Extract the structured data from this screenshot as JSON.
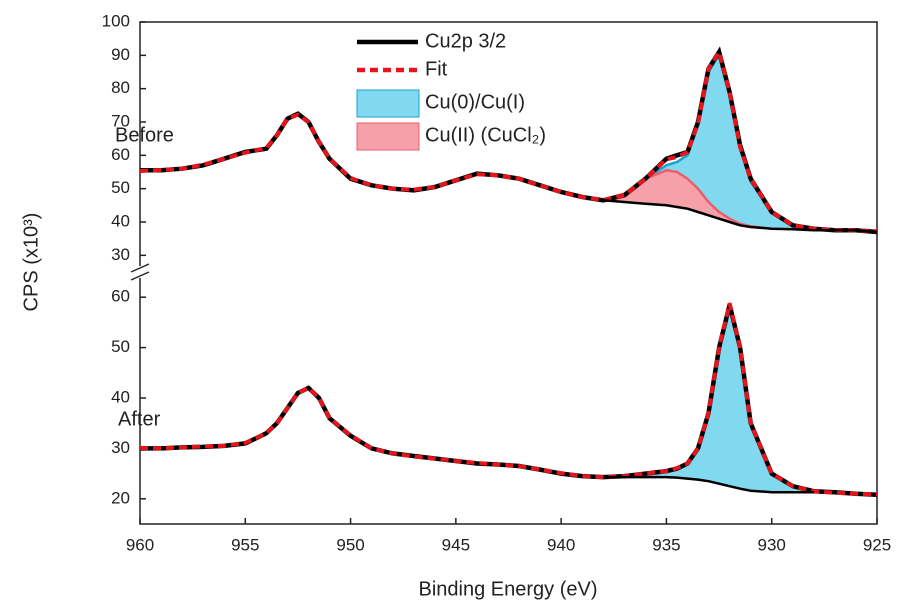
{
  "chart_data": [
    {
      "type": "line",
      "label": "Before",
      "ylabel": "CPS (x10³)",
      "xlim": [
        960,
        925
      ],
      "ylim": [
        25,
        100
      ],
      "yticks": [
        30,
        40,
        50,
        60,
        70,
        80,
        90,
        100
      ],
      "x": [
        960,
        959,
        958,
        957,
        956,
        955,
        954,
        953.5,
        953,
        952.5,
        952,
        951.5,
        951,
        950,
        949,
        948,
        947,
        946,
        945,
        944,
        943,
        942,
        941,
        940,
        939,
        938,
        937,
        936,
        935,
        934.5,
        934,
        933.5,
        933,
        932.5,
        932,
        931.5,
        931,
        930,
        929,
        928,
        927,
        926,
        925
      ],
      "series": [
        {
          "name": "Cu(0)/Cu(I)",
          "color": "#1aa3d0",
          "fill": "#80d9ef",
          "values": [
            null,
            null,
            null,
            null,
            null,
            null,
            null,
            null,
            null,
            null,
            null,
            null,
            null,
            null,
            null,
            null,
            null,
            null,
            null,
            null,
            null,
            null,
            null,
            null,
            null,
            null,
            null,
            53,
            57,
            58,
            60,
            69,
            85,
            90,
            79,
            62,
            52,
            43,
            39,
            38,
            null,
            null,
            null
          ]
        },
        {
          "name": "Cu(II) (CuCl₂)",
          "color": "#e8606c",
          "fill": "#f6a1aa",
          "values": [
            null,
            null,
            null,
            null,
            null,
            null,
            null,
            null,
            null,
            null,
            null,
            null,
            null,
            null,
            null,
            null,
            null,
            null,
            null,
            null,
            null,
            null,
            null,
            null,
            null,
            46.8,
            48.5,
            53,
            55.5,
            55,
            53,
            50,
            46,
            43,
            41,
            39.5,
            38.7,
            38,
            null,
            null,
            null,
            null,
            null
          ]
        },
        {
          "name": "Cu2p 3/2",
          "color": "#000000",
          "values": [
            55.5,
            55.5,
            56,
            57,
            59,
            61,
            62,
            66,
            71,
            72.5,
            70,
            64,
            59,
            53,
            51,
            50,
            49.5,
            50.5,
            52.5,
            54.5,
            54,
            53,
            51,
            49,
            47.5,
            46.5,
            48,
            53,
            59,
            60,
            61,
            70,
            86,
            91,
            79,
            63,
            53,
            43,
            39,
            38,
            37.5,
            37.5,
            37
          ]
        },
        {
          "name": "Fit",
          "color": "#e8141b",
          "dash": true,
          "values": [
            55.3,
            55.6,
            56,
            57.2,
            59,
            60.8,
            62.2,
            66,
            71,
            72.2,
            70,
            64,
            59,
            53.2,
            51,
            50,
            49.7,
            50.5,
            52.5,
            54.3,
            54,
            53,
            51,
            49,
            47.5,
            46.6,
            48,
            53,
            58.8,
            59.5,
            61,
            69.5,
            86,
            91,
            79,
            62.5,
            53,
            43,
            39,
            38,
            37.6,
            37.5,
            37.2
          ]
        }
      ],
      "background": {
        "color": "#000000",
        "values": [
          null,
          null,
          null,
          null,
          null,
          null,
          null,
          null,
          null,
          null,
          null,
          null,
          null,
          null,
          null,
          null,
          null,
          null,
          null,
          null,
          null,
          null,
          null,
          null,
          null,
          46.5,
          46,
          45.5,
          45,
          44.5,
          44,
          43,
          42,
          41,
          40,
          39,
          38.5,
          38,
          37.8,
          37.5,
          37.5,
          37.5,
          37
        ]
      }
    },
    {
      "type": "line",
      "label": "After",
      "xlabel": "Binding Energy (eV)",
      "xlim": [
        960,
        925
      ],
      "xticks": [
        960,
        955,
        950,
        945,
        940,
        935,
        930,
        925
      ],
      "ylim": [
        15,
        65
      ],
      "yticks": [
        20,
        30,
        40,
        50,
        60
      ],
      "x": [
        960,
        959,
        958,
        957,
        956,
        955,
        954,
        953.5,
        953,
        952.5,
        952,
        951.5,
        951,
        950,
        949,
        948,
        947,
        946,
        945,
        944,
        943,
        942,
        941,
        940,
        939,
        938,
        937,
        936,
        935,
        934.5,
        934,
        933.5,
        933,
        932.5,
        932,
        931.5,
        931,
        930,
        929,
        928,
        927,
        926,
        925
      ],
      "series": [
        {
          "color": "#1aa3d0",
          "fill": "#80d9ef",
          "values": [
            null,
            null,
            null,
            null,
            null,
            null,
            null,
            null,
            null,
            null,
            null,
            null,
            null,
            null,
            null,
            null,
            null,
            null,
            null,
            null,
            null,
            null,
            null,
            null,
            null,
            24.3,
            24.5,
            25,
            25.5,
            26,
            27,
            30,
            37,
            50,
            58.5,
            50,
            35,
            25,
            22.5,
            21.5,
            null,
            null,
            null
          ]
        },
        {
          "color": "#000000",
          "values": [
            30,
            30,
            30.2,
            30.3,
            30.5,
            31,
            33,
            35,
            38,
            41,
            42,
            40,
            36,
            32.5,
            30,
            29,
            28.5,
            28,
            27.5,
            27,
            26.8,
            26.5,
            25.8,
            25,
            24.5,
            24.3,
            24.5,
            25,
            25.5,
            26,
            27,
            30,
            37,
            50,
            58.5,
            50,
            35,
            25,
            22.5,
            21.5,
            21.3,
            21,
            20.8
          ]
        },
        {
          "color": "#e8141b",
          "dash": true,
          "values": [
            30.1,
            30,
            30.2,
            30.4,
            30.5,
            31.1,
            33,
            35,
            38,
            41,
            42,
            40,
            36,
            32.6,
            30,
            29,
            28.4,
            28,
            27.5,
            27.1,
            26.8,
            26.5,
            25.8,
            25.1,
            24.5,
            24.3,
            24.5,
            25,
            25.5,
            26.1,
            27,
            30,
            37,
            50,
            58.8,
            50,
            35,
            25,
            22.5,
            21.5,
            21.2,
            21,
            20.9
          ]
        }
      ],
      "background": {
        "color": "#000000",
        "values": [
          null,
          null,
          null,
          null,
          null,
          null,
          null,
          null,
          null,
          null,
          null,
          null,
          null,
          null,
          null,
          null,
          null,
          null,
          null,
          null,
          null,
          null,
          null,
          null,
          null,
          24.3,
          24.3,
          24.3,
          24.3,
          24.2,
          24,
          23.8,
          23.5,
          23,
          22.5,
          22,
          21.6,
          21.3,
          21.3,
          21.3,
          null,
          null,
          null
        ]
      }
    }
  ]
}
